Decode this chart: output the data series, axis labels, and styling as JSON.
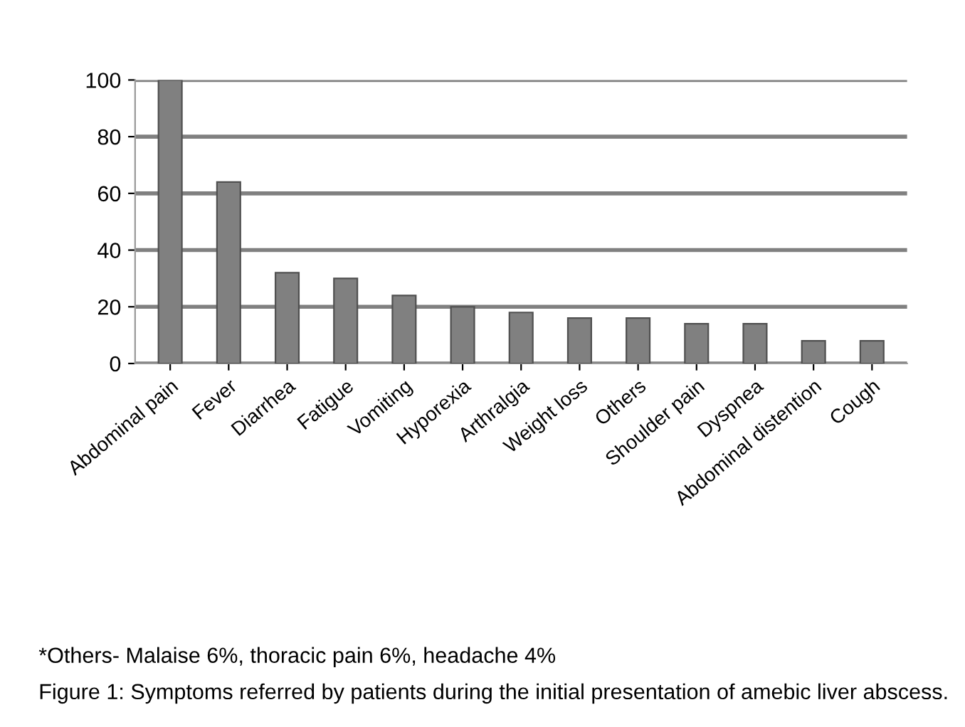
{
  "chart_data": {
    "type": "bar",
    "categories": [
      "Abdominal pain",
      "Fever",
      "Diarrhea",
      "Fatigue",
      "Vomiting",
      "Hyporexia",
      "Arthralgia",
      "Weight loss",
      "Others",
      "Shoulder pain",
      "Dyspnea",
      "Abdominal distention",
      "Cough"
    ],
    "values": [
      100,
      64,
      32,
      30,
      24,
      20,
      18,
      16,
      16,
      14,
      14,
      8,
      8
    ],
    "color": "#808080",
    "ylim": [
      0,
      100
    ],
    "yticks": [
      0,
      20,
      40,
      60,
      80,
      100
    ],
    "grid": "y",
    "annotations": [
      "*Others- Malaise 6%, thoracic pain 6%, headache 4%",
      "Figure 1: Symptoms referred by patients during the initial presentation of amebic liver abscess."
    ]
  }
}
